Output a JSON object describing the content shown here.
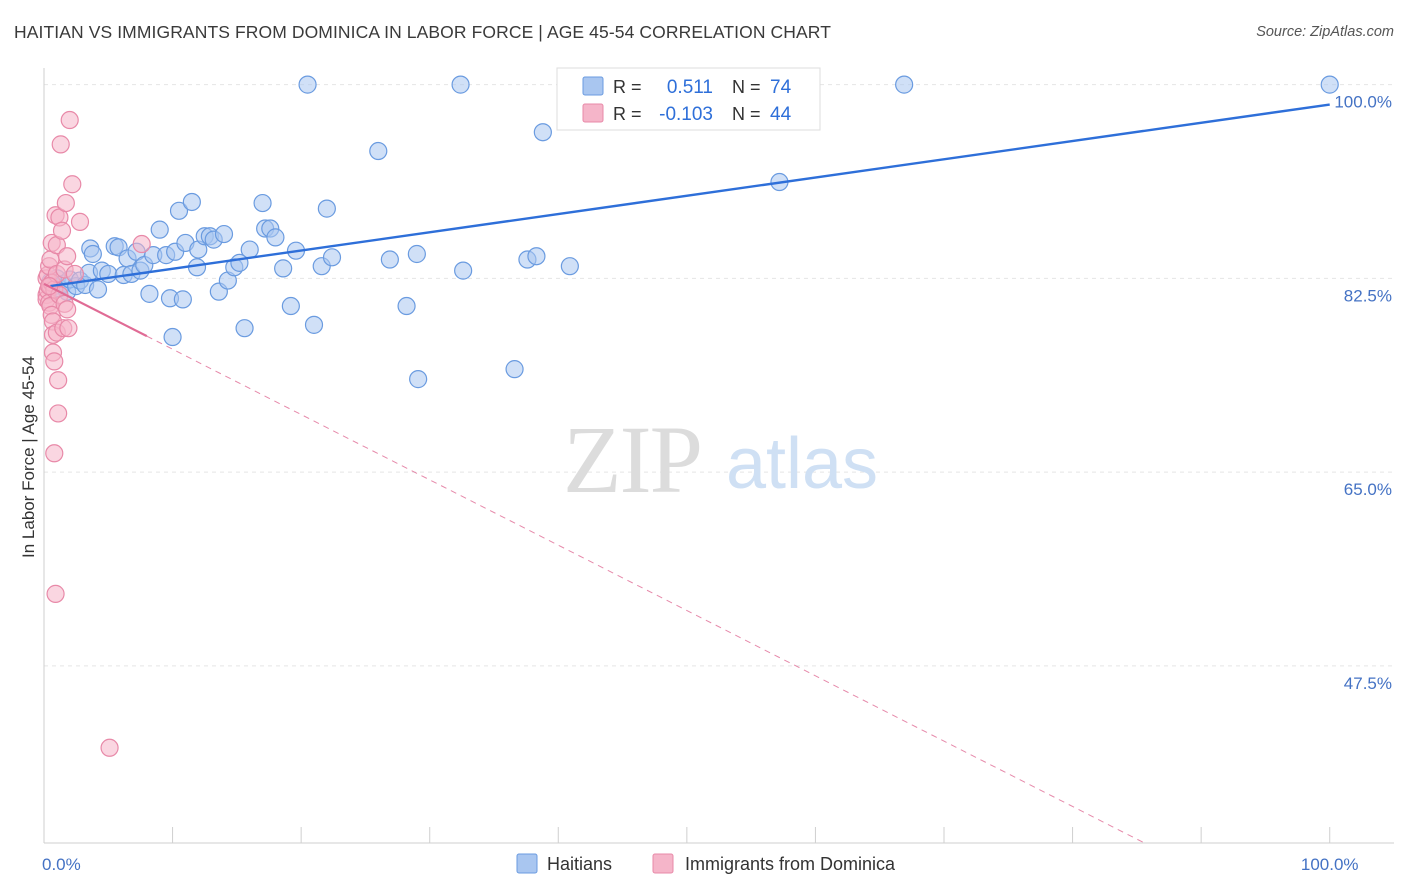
{
  "header": {
    "title": "HAITIAN VS IMMIGRANTS FROM DOMINICA IN LABOR FORCE | AGE 45-54 CORRELATION CHART",
    "source": "Source: ZipAtlas.com"
  },
  "watermark": {
    "zip": "ZIP",
    "atlas": "atlas"
  },
  "colors": {
    "blue_fill": "#a9c6f0",
    "blue_stroke": "#6a9be0",
    "blue_line": "#2e6fd9",
    "pink_fill": "#f5b5c9",
    "pink_stroke": "#e889a8",
    "pink_line": "#e06b95",
    "grid": "#e5e5e5",
    "tick_text": "#4472c4"
  },
  "legend": {
    "rows": [
      {
        "r_label": "R =",
        "r_value": "0.511",
        "n_label": "N =",
        "n_value": "74"
      },
      {
        "r_label": "R =",
        "r_value": "-0.103",
        "n_label": "N =",
        "n_value": "44"
      }
    ]
  },
  "bottom_legend": [
    {
      "label": "Haitians"
    },
    {
      "label": "Immigrants from Dominica"
    }
  ],
  "chart_data": {
    "type": "scatter",
    "title": "HAITIAN VS IMMIGRANTS FROM DOMINICA IN LABOR FORCE | AGE 45-54 CORRELATION CHART",
    "xlabel": "",
    "ylabel": "In Labor Force | Age 45-54",
    "xlim": [
      0,
      105
    ],
    "ylim": [
      31.5,
      101.5
    ],
    "x_tick_labels": [
      {
        "value": 0,
        "label": "0.0%"
      },
      {
        "value": 100,
        "label": "100.0%"
      }
    ],
    "x_minor_ticks": [
      10,
      20,
      30,
      40,
      50,
      60,
      70,
      80,
      90,
      100
    ],
    "y_ticks": [
      {
        "value": 100,
        "label": "100.0%"
      },
      {
        "value": 82.5,
        "label": "82.5%"
      },
      {
        "value": 65,
        "label": "65.0%"
      },
      {
        "value": 47.5,
        "label": "47.5%"
      }
    ],
    "series": [
      {
        "name": "Haitians",
        "R": 0.511,
        "N": 74,
        "trend": {
          "x": [
            0.5,
            100
          ],
          "y": [
            81.8,
            98.2
          ],
          "style": "solid"
        },
        "points": [
          [
            0.5,
            82.2
          ],
          [
            0.8,
            81.8
          ],
          [
            1.0,
            82.5
          ],
          [
            1.2,
            81.6
          ],
          [
            1.5,
            82.0
          ],
          [
            1.8,
            81.3
          ],
          [
            2.0,
            82.4
          ],
          [
            2.5,
            81.8
          ],
          [
            2.8,
            82.3
          ],
          [
            3.2,
            81.9
          ],
          [
            3.5,
            83.0
          ],
          [
            3.6,
            85.2
          ],
          [
            3.8,
            84.7
          ],
          [
            4.2,
            81.5
          ],
          [
            4.5,
            83.2
          ],
          [
            5.0,
            82.9
          ],
          [
            5.5,
            85.4
          ],
          [
            5.8,
            85.3
          ],
          [
            6.2,
            82.8
          ],
          [
            6.5,
            84.3
          ],
          [
            6.8,
            82.9
          ],
          [
            7.2,
            84.9
          ],
          [
            7.5,
            83.2
          ],
          [
            7.8,
            83.7
          ],
          [
            8.2,
            81.1
          ],
          [
            8.5,
            84.6
          ],
          [
            9.0,
            86.9
          ],
          [
            9.5,
            84.6
          ],
          [
            9.8,
            80.7
          ],
          [
            10.0,
            77.2
          ],
          [
            10.2,
            84.9
          ],
          [
            10.5,
            88.6
          ],
          [
            10.8,
            80.6
          ],
          [
            11.0,
            85.7
          ],
          [
            11.5,
            89.4
          ],
          [
            11.9,
            83.5
          ],
          [
            12.0,
            85.1
          ],
          [
            12.5,
            86.3
          ],
          [
            12.9,
            86.3
          ],
          [
            13.2,
            86.0
          ],
          [
            13.6,
            81.3
          ],
          [
            14.0,
            86.5
          ],
          [
            14.3,
            82.3
          ],
          [
            14.8,
            83.5
          ],
          [
            15.2,
            83.9
          ],
          [
            15.6,
            78.0
          ],
          [
            16.0,
            85.1
          ],
          [
            17.0,
            89.3
          ],
          [
            17.2,
            87.0
          ],
          [
            17.6,
            87.0
          ],
          [
            18.0,
            86.2
          ],
          [
            18.6,
            83.4
          ],
          [
            19.2,
            80.0
          ],
          [
            19.6,
            85.0
          ],
          [
            20.5,
            100.0
          ],
          [
            21.0,
            78.3
          ],
          [
            21.6,
            83.6
          ],
          [
            22.0,
            88.8
          ],
          [
            22.4,
            84.4
          ],
          [
            26.0,
            94.0
          ],
          [
            26.9,
            84.2
          ],
          [
            28.2,
            80.0
          ],
          [
            29.0,
            84.7
          ],
          [
            29.1,
            73.4
          ],
          [
            32.4,
            100.0
          ],
          [
            32.6,
            83.2
          ],
          [
            36.6,
            74.3
          ],
          [
            37.6,
            84.2
          ],
          [
            38.3,
            84.5
          ],
          [
            38.8,
            95.7
          ],
          [
            40.9,
            83.6
          ],
          [
            57.2,
            91.2
          ],
          [
            66.9,
            100.0
          ],
          [
            100.0,
            100.0
          ]
        ]
      },
      {
        "name": "Immigrants from Dominica",
        "R": -0.103,
        "N": 44,
        "trend": {
          "x": [
            0,
            100
          ],
          "y": [
            82.0,
            23.0
          ],
          "solid_until_x": 8,
          "style": "dashed"
        },
        "points": [
          [
            0.2,
            82.5
          ],
          [
            0.2,
            81.0
          ],
          [
            0.2,
            80.6
          ],
          [
            0.3,
            82.8
          ],
          [
            0.3,
            81.4
          ],
          [
            0.4,
            80.3
          ],
          [
            0.4,
            83.6
          ],
          [
            0.5,
            81.8
          ],
          [
            0.5,
            84.2
          ],
          [
            0.5,
            80.0
          ],
          [
            0.6,
            79.2
          ],
          [
            0.6,
            82.1
          ],
          [
            0.6,
            85.7
          ],
          [
            0.7,
            78.6
          ],
          [
            0.7,
            77.4
          ],
          [
            0.7,
            75.8
          ],
          [
            0.8,
            75.0
          ],
          [
            0.8,
            81.5
          ],
          [
            0.8,
            66.7
          ],
          [
            0.9,
            54.0
          ],
          [
            0.9,
            88.2
          ],
          [
            1.0,
            85.5
          ],
          [
            1.0,
            77.6
          ],
          [
            1.0,
            82.9
          ],
          [
            1.1,
            73.3
          ],
          [
            1.1,
            70.3
          ],
          [
            1.2,
            88.0
          ],
          [
            1.2,
            81.0
          ],
          [
            1.3,
            94.6
          ],
          [
            1.4,
            86.8
          ],
          [
            1.5,
            78.0
          ],
          [
            1.6,
            83.3
          ],
          [
            1.6,
            80.2
          ],
          [
            1.7,
            89.3
          ],
          [
            1.8,
            84.5
          ],
          [
            1.8,
            79.7
          ],
          [
            1.9,
            78.0
          ],
          [
            2.0,
            96.8
          ],
          [
            2.2,
            91.0
          ],
          [
            2.4,
            82.9
          ],
          [
            2.8,
            87.6
          ],
          [
            5.1,
            40.1
          ],
          [
            7.6,
            85.6
          ],
          [
            0.4,
            81.8
          ]
        ]
      }
    ]
  }
}
